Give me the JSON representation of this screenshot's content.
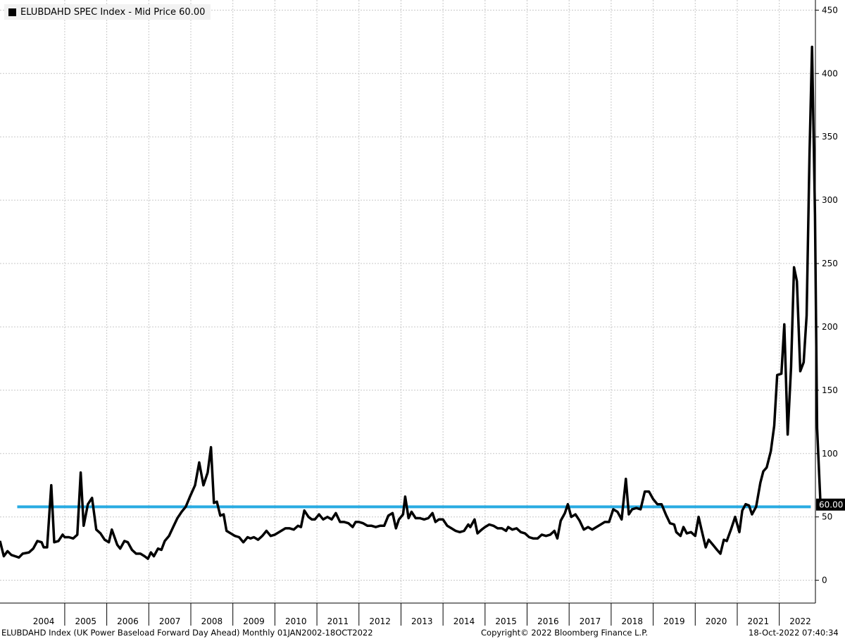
{
  "legend": {
    "label": "ELUBDAHD SPEC Index - Mid Price 60.00",
    "color": "#000000"
  },
  "footer": {
    "description": "ELUBDAHD Index (UK Power Baseload Forward Day Ahead)  Monthly 01JAN2002-18OCT2022",
    "copyright": "Copyright© 2022 Bloomberg Finance L.P.",
    "timestamp": "18-Oct-2022 07:40:34"
  },
  "chart_data": {
    "type": "line",
    "title": "",
    "xlabel": "",
    "ylabel": "",
    "ylim": [
      -18,
      458
    ],
    "yticks": [
      0,
      50,
      100,
      150,
      200,
      250,
      300,
      350,
      400,
      450
    ],
    "ytick_labels": [
      "0",
      "50",
      "100",
      "150",
      "200",
      "250",
      "300",
      "350",
      "400",
      "450"
    ],
    "xlim": [
      2003.46,
      2022.86
    ],
    "x_categories": [
      "2004",
      "2005",
      "2006",
      "2007",
      "2008",
      "2009",
      "2010",
      "2011",
      "2012",
      "2013",
      "2014",
      "2015",
      "2016",
      "2017",
      "2018",
      "2019",
      "2020",
      "2021",
      "2022"
    ],
    "grid": true,
    "y_axis_side": "right",
    "last_value_label": "60.00",
    "reference_line": {
      "value": 58,
      "x_start": 2003.87,
      "x_end": 2022.75,
      "color": "#29abe2"
    },
    "series": [
      {
        "name": "ELUBDAHD SPEC Index - Mid Price 60.00",
        "color": "#000000",
        "points": [
          [
            2003.46,
            31
          ],
          [
            2003.55,
            19
          ],
          [
            2003.64,
            23
          ],
          [
            2003.73,
            20
          ],
          [
            2003.82,
            19
          ],
          [
            2003.91,
            18
          ],
          [
            2004.0,
            21
          ],
          [
            2004.15,
            22
          ],
          [
            2004.25,
            25
          ],
          [
            2004.35,
            31
          ],
          [
            2004.45,
            30
          ],
          [
            2004.5,
            26
          ],
          [
            2004.58,
            26
          ],
          [
            2004.68,
            75
          ],
          [
            2004.75,
            30
          ],
          [
            2004.85,
            31
          ],
          [
            2004.95,
            36
          ],
          [
            2005.0,
            34
          ],
          [
            2005.1,
            34
          ],
          [
            2005.2,
            33
          ],
          [
            2005.3,
            36
          ],
          [
            2005.38,
            85
          ],
          [
            2005.45,
            43
          ],
          [
            2005.55,
            60
          ],
          [
            2005.65,
            65
          ],
          [
            2005.75,
            40
          ],
          [
            2005.85,
            37
          ],
          [
            2005.95,
            32
          ],
          [
            2006.05,
            30
          ],
          [
            2006.12,
            40
          ],
          [
            2006.25,
            28
          ],
          [
            2006.32,
            25
          ],
          [
            2006.42,
            31
          ],
          [
            2006.5,
            30
          ],
          [
            2006.6,
            24
          ],
          [
            2006.7,
            21
          ],
          [
            2006.8,
            21
          ],
          [
            2006.9,
            19
          ],
          [
            2006.98,
            17
          ],
          [
            2007.05,
            22
          ],
          [
            2007.12,
            19
          ],
          [
            2007.22,
            25
          ],
          [
            2007.3,
            24
          ],
          [
            2007.38,
            31
          ],
          [
            2007.48,
            35
          ],
          [
            2007.58,
            42
          ],
          [
            2007.68,
            49
          ],
          [
            2007.78,
            54
          ],
          [
            2007.88,
            58
          ],
          [
            2007.98,
            66
          ],
          [
            2008.1,
            75
          ],
          [
            2008.2,
            93
          ],
          [
            2008.3,
            75
          ],
          [
            2008.4,
            85
          ],
          [
            2008.48,
            105
          ],
          [
            2008.55,
            61
          ],
          [
            2008.62,
            62
          ],
          [
            2008.7,
            51
          ],
          [
            2008.78,
            52
          ],
          [
            2008.85,
            39
          ],
          [
            2008.95,
            37
          ],
          [
            2009.05,
            35
          ],
          [
            2009.15,
            34
          ],
          [
            2009.25,
            30
          ],
          [
            2009.35,
            34
          ],
          [
            2009.42,
            33
          ],
          [
            2009.5,
            34
          ],
          [
            2009.6,
            32
          ],
          [
            2009.7,
            35
          ],
          [
            2009.8,
            39
          ],
          [
            2009.9,
            35
          ],
          [
            2010.0,
            36
          ],
          [
            2010.15,
            39
          ],
          [
            2010.25,
            41
          ],
          [
            2010.35,
            41
          ],
          [
            2010.45,
            40
          ],
          [
            2010.55,
            43
          ],
          [
            2010.62,
            42
          ],
          [
            2010.7,
            55
          ],
          [
            2010.8,
            50
          ],
          [
            2010.88,
            48
          ],
          [
            2010.95,
            48
          ],
          [
            2011.05,
            52
          ],
          [
            2011.15,
            48
          ],
          [
            2011.25,
            50
          ],
          [
            2011.35,
            48
          ],
          [
            2011.45,
            53
          ],
          [
            2011.55,
            46
          ],
          [
            2011.65,
            46
          ],
          [
            2011.75,
            45
          ],
          [
            2011.85,
            42
          ],
          [
            2011.92,
            46
          ],
          [
            2012.0,
            46
          ],
          [
            2012.1,
            45
          ],
          [
            2012.2,
            43
          ],
          [
            2012.3,
            43
          ],
          [
            2012.4,
            42
          ],
          [
            2012.5,
            43
          ],
          [
            2012.6,
            43
          ],
          [
            2012.7,
            51
          ],
          [
            2012.8,
            53
          ],
          [
            2012.88,
            41
          ],
          [
            2012.95,
            48
          ],
          [
            2013.05,
            52
          ],
          [
            2013.1,
            66
          ],
          [
            2013.18,
            49
          ],
          [
            2013.25,
            54
          ],
          [
            2013.35,
            49
          ],
          [
            2013.45,
            49
          ],
          [
            2013.55,
            48
          ],
          [
            2013.65,
            49
          ],
          [
            2013.75,
            53
          ],
          [
            2013.82,
            46
          ],
          [
            2013.9,
            48
          ],
          [
            2014.0,
            48
          ],
          [
            2014.1,
            43
          ],
          [
            2014.2,
            41
          ],
          [
            2014.3,
            39
          ],
          [
            2014.4,
            38
          ],
          [
            2014.5,
            39
          ],
          [
            2014.6,
            44
          ],
          [
            2014.65,
            42
          ],
          [
            2014.75,
            48
          ],
          [
            2014.82,
            37
          ],
          [
            2014.92,
            40
          ],
          [
            2015.0,
            42
          ],
          [
            2015.1,
            44
          ],
          [
            2015.2,
            43
          ],
          [
            2015.3,
            41
          ],
          [
            2015.4,
            41
          ],
          [
            2015.5,
            39
          ],
          [
            2015.55,
            42
          ],
          [
            2015.65,
            40
          ],
          [
            2015.75,
            41
          ],
          [
            2015.85,
            38
          ],
          [
            2015.95,
            37
          ],
          [
            2016.05,
            34
          ],
          [
            2016.15,
            33
          ],
          [
            2016.25,
            33
          ],
          [
            2016.35,
            36
          ],
          [
            2016.45,
            35
          ],
          [
            2016.55,
            36
          ],
          [
            2016.65,
            39
          ],
          [
            2016.72,
            33
          ],
          [
            2016.8,
            47
          ],
          [
            2016.9,
            53
          ],
          [
            2016.97,
            60
          ],
          [
            2017.05,
            50
          ],
          [
            2017.15,
            52
          ],
          [
            2017.25,
            47
          ],
          [
            2017.35,
            40
          ],
          [
            2017.45,
            42
          ],
          [
            2017.55,
            40
          ],
          [
            2017.65,
            42
          ],
          [
            2017.75,
            44
          ],
          [
            2017.85,
            46
          ],
          [
            2017.95,
            46
          ],
          [
            2018.05,
            56
          ],
          [
            2018.15,
            54
          ],
          [
            2018.25,
            48
          ],
          [
            2018.35,
            80
          ],
          [
            2018.42,
            52
          ],
          [
            2018.5,
            56
          ],
          [
            2018.6,
            57
          ],
          [
            2018.7,
            56
          ],
          [
            2018.8,
            70
          ],
          [
            2018.9,
            70
          ],
          [
            2019.0,
            64
          ],
          [
            2019.1,
            60
          ],
          [
            2019.2,
            60
          ],
          [
            2019.3,
            52
          ],
          [
            2019.4,
            45
          ],
          [
            2019.5,
            44
          ],
          [
            2019.55,
            38
          ],
          [
            2019.65,
            35
          ],
          [
            2019.72,
            42
          ],
          [
            2019.8,
            37
          ],
          [
            2019.9,
            38
          ],
          [
            2020.0,
            35
          ],
          [
            2020.08,
            50
          ],
          [
            2020.15,
            40
          ],
          [
            2020.25,
            26
          ],
          [
            2020.32,
            32
          ],
          [
            2020.42,
            28
          ],
          [
            2020.52,
            24
          ],
          [
            2020.6,
            21
          ],
          [
            2020.68,
            32
          ],
          [
            2020.75,
            31
          ],
          [
            2020.85,
            40
          ],
          [
            2020.95,
            50
          ],
          [
            2021.05,
            38
          ],
          [
            2021.12,
            55
          ],
          [
            2021.2,
            60
          ],
          [
            2021.28,
            59
          ],
          [
            2021.35,
            52
          ],
          [
            2021.45,
            58
          ],
          [
            2021.55,
            77
          ],
          [
            2021.62,
            86
          ],
          [
            2021.7,
            89
          ],
          [
            2021.8,
            102
          ],
          [
            2021.88,
            122
          ],
          [
            2021.95,
            162
          ],
          [
            2022.05,
            163
          ],
          [
            2022.12,
            202
          ],
          [
            2022.2,
            115
          ],
          [
            2022.28,
            168
          ],
          [
            2022.35,
            247
          ],
          [
            2022.42,
            236
          ],
          [
            2022.5,
            165
          ],
          [
            2022.58,
            172
          ],
          [
            2022.65,
            209
          ],
          [
            2022.72,
            336
          ],
          [
            2022.78,
            421
          ],
          [
            2022.85,
            288
          ],
          [
            2022.9,
            120
          ],
          [
            2022.98,
            60
          ]
        ]
      }
    ]
  }
}
